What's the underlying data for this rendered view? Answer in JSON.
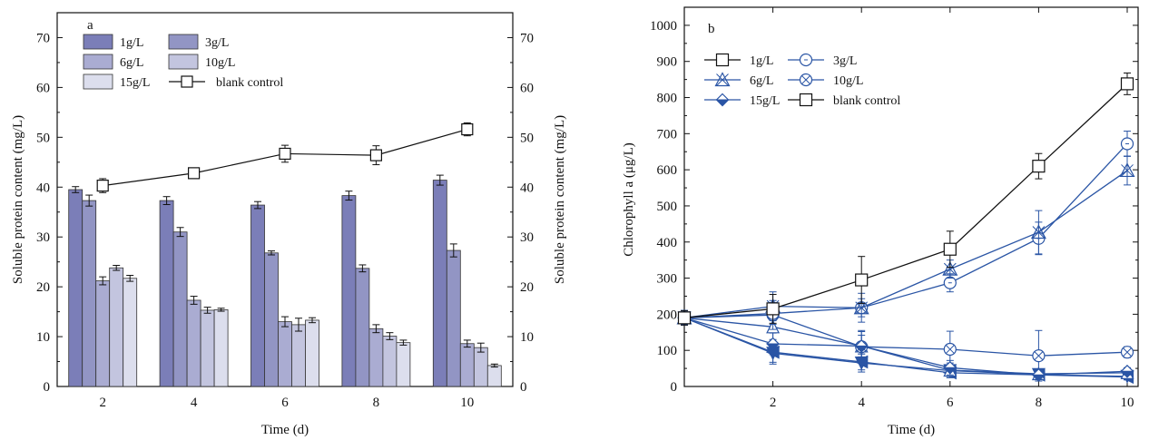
{
  "chart_data": [
    {
      "panel_label": "a",
      "type": "bar",
      "xlabel": "Time (d)",
      "ylabel": "Soluble protein content (mg/L)",
      "ylabel_right": "Soluble protein content (mg/L)",
      "ylim": [
        0,
        75
      ],
      "yticks": [
        0,
        10,
        20,
        30,
        40,
        50,
        60,
        70
      ],
      "categories": [
        "2",
        "4",
        "6",
        "8",
        "10"
      ],
      "legend_position": "top-left",
      "grid": false,
      "series": [
        {
          "name": "1g/L",
          "values": [
            39.5,
            37.3,
            36.4,
            38.3,
            41.4
          ],
          "errors": [
            0.6,
            0.8,
            0.7,
            0.9,
            1.0
          ],
          "color": "#7b7eb8"
        },
        {
          "name": "3g/L",
          "values": [
            37.3,
            31.0,
            26.8,
            23.7,
            27.3
          ],
          "errors": [
            1.1,
            0.9,
            0.4,
            0.7,
            1.3
          ],
          "color": "#9295c4"
        },
        {
          "name": "6g/L",
          "values": [
            21.2,
            17.3,
            13.0,
            11.6,
            8.6
          ],
          "errors": [
            0.8,
            0.8,
            1.0,
            0.8,
            0.7
          ],
          "color": "#aaacd2"
        },
        {
          "name": "10g/L",
          "values": [
            23.8,
            15.3,
            12.4,
            10.1,
            7.8
          ],
          "errors": [
            0.5,
            0.6,
            1.3,
            0.7,
            0.9
          ],
          "color": "#c3c5df"
        },
        {
          "name": "15g/L",
          "values": [
            21.7,
            15.4,
            13.3,
            8.8,
            4.2
          ],
          "errors": [
            0.6,
            0.3,
            0.5,
            0.5,
            0.3
          ],
          "color": "#dcdeed"
        }
      ],
      "line_series": {
        "name": "blank control",
        "x": [
          2,
          4,
          6,
          8,
          10
        ],
        "values": [
          40.3,
          42.8,
          46.7,
          46.4,
          51.6
        ],
        "errors": [
          1.4,
          0.5,
          1.7,
          1.9,
          1.3
        ],
        "marker": "square"
      }
    },
    {
      "panel_label": "b",
      "type": "line",
      "xlabel": "Time (d)",
      "ylabel": "Chlorophyll a (μg/L)",
      "ylim": [
        0,
        1050
      ],
      "yticks": [
        0,
        100,
        200,
        300,
        400,
        500,
        600,
        700,
        800,
        900,
        1000
      ],
      "xlim": [
        0,
        10
      ],
      "xticks": [
        2,
        4,
        6,
        8,
        10
      ],
      "legend_position": "top-left",
      "grid": false,
      "series": [
        {
          "name": "1g/L",
          "marker": "triangle-down",
          "filled": true,
          "color": "#2a55a5",
          "x": [
            0,
            2,
            4,
            6,
            8,
            10
          ],
          "y": [
            190,
            92,
            65,
            44,
            33,
            28
          ],
          "err": [
            20,
            30,
            25,
            15,
            10,
            8
          ]
        },
        {
          "name": "3g/L",
          "marker": "triangle-left",
          "filled": true,
          "color": "#2a55a5",
          "x": [
            0,
            2,
            4,
            6,
            8,
            10
          ],
          "y": [
            190,
            95,
            68,
            38,
            32,
            26
          ],
          "err": [
            20,
            28,
            22,
            14,
            10,
            8
          ]
        },
        {
          "name": "6g/L",
          "marker": "triangle-up",
          "filled": false,
          "color": "#2a55a5",
          "x": [
            0,
            2,
            4,
            6,
            8,
            10
          ],
          "y": [
            190,
            165,
            112,
            45,
            35,
            38
          ],
          "err": [
            20,
            35,
            40,
            20,
            12,
            10
          ]
        },
        {
          "name": "10g/L",
          "marker": "circle-x",
          "filled": false,
          "color": "#2a55a5",
          "x": [
            0,
            2,
            4,
            6,
            8,
            10
          ],
          "y": [
            190,
            198,
            110,
            103,
            85,
            95
          ],
          "err": [
            20,
            40,
            45,
            50,
            70,
            15
          ]
        },
        {
          "name": "15g/L",
          "marker": "half-diamond",
          "filled": true,
          "color": "#2a55a5",
          "x": [
            0,
            2,
            4,
            6,
            8,
            10
          ],
          "y": [
            190,
            118,
            112,
            52,
            32,
            42
          ],
          "err": [
            20,
            30,
            30,
            20,
            10,
            10
          ]
        },
        {
          "name": "3g/L (upper)",
          "marker": "circle",
          "filled": false,
          "color": "#2a55a5",
          "x": [
            0,
            2,
            4,
            6,
            8,
            10
          ],
          "y": [
            190,
            202,
            218,
            287,
            410,
            672
          ],
          "err": [
            20,
            30,
            25,
            25,
            45,
            35
          ]
        },
        {
          "name": "6g/L (upper)",
          "marker": "asterisk-triangle",
          "filled": false,
          "color": "#2a55a5",
          "x": [
            0,
            2,
            4,
            6,
            8,
            10
          ],
          "y": [
            190,
            222,
            218,
            325,
            427,
            598
          ],
          "err": [
            20,
            40,
            40,
            25,
            60,
            40
          ]
        },
        {
          "name": "blank control",
          "marker": "square",
          "filled": false,
          "color": "#111111",
          "x": [
            0,
            2,
            4,
            6,
            8,
            10
          ],
          "y": [
            190,
            215,
            295,
            380,
            610,
            838
          ],
          "err": [
            20,
            40,
            65,
            50,
            35,
            30
          ]
        }
      ]
    }
  ],
  "legend_a": [
    {
      "label": "1g/L",
      "kind": "bar",
      "color": "#7b7eb8"
    },
    {
      "label": "3g/L",
      "kind": "bar",
      "color": "#9295c4"
    },
    {
      "label": "6g/L",
      "kind": "bar",
      "color": "#aaacd2"
    },
    {
      "label": "10g/L",
      "kind": "bar",
      "color": "#c3c5df"
    },
    {
      "label": "15g/L",
      "kind": "bar",
      "color": "#dcdeed"
    },
    {
      "label": "blank control",
      "kind": "line-square"
    }
  ],
  "legend_b": [
    {
      "label": "1g/L",
      "kind": "square"
    },
    {
      "label": "3g/L",
      "kind": "circle"
    },
    {
      "label": "6g/L",
      "kind": "asterisk-triangle"
    },
    {
      "label": "10g/L",
      "kind": "circle-x"
    },
    {
      "label": "15g/L",
      "kind": "half-diamond"
    },
    {
      "label": "blank control",
      "kind": "square"
    }
  ]
}
